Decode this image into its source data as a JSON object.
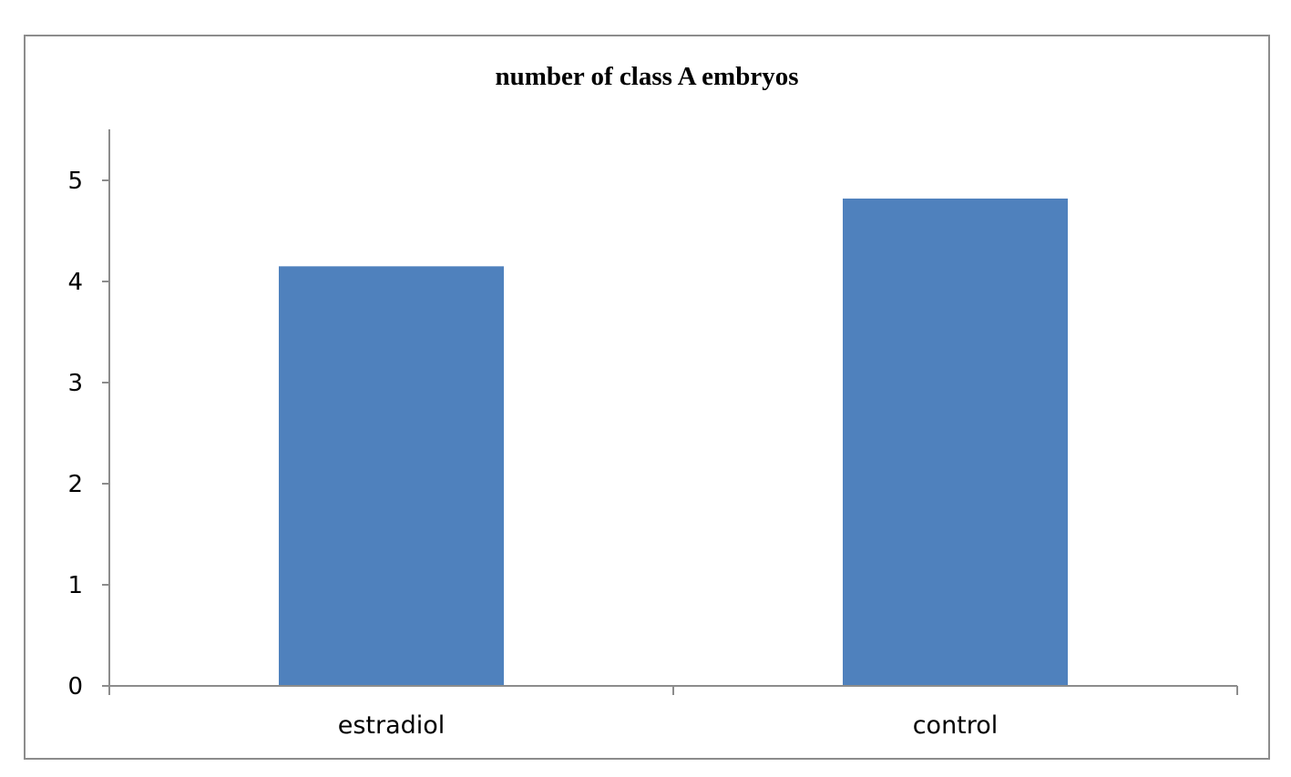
{
  "chart_data": {
    "type": "bar",
    "title": "number of class A embryos",
    "xlabel": "",
    "ylabel": "",
    "categories": [
      "estradiol",
      "control"
    ],
    "values": [
      4.15,
      4.82
    ],
    "ylim": [
      0,
      5.5
    ],
    "yticks": [
      "0",
      "1",
      "2",
      "3",
      "4",
      "5"
    ],
    "grid": false,
    "legend": "none",
    "bar_color": "#4f81bd"
  }
}
